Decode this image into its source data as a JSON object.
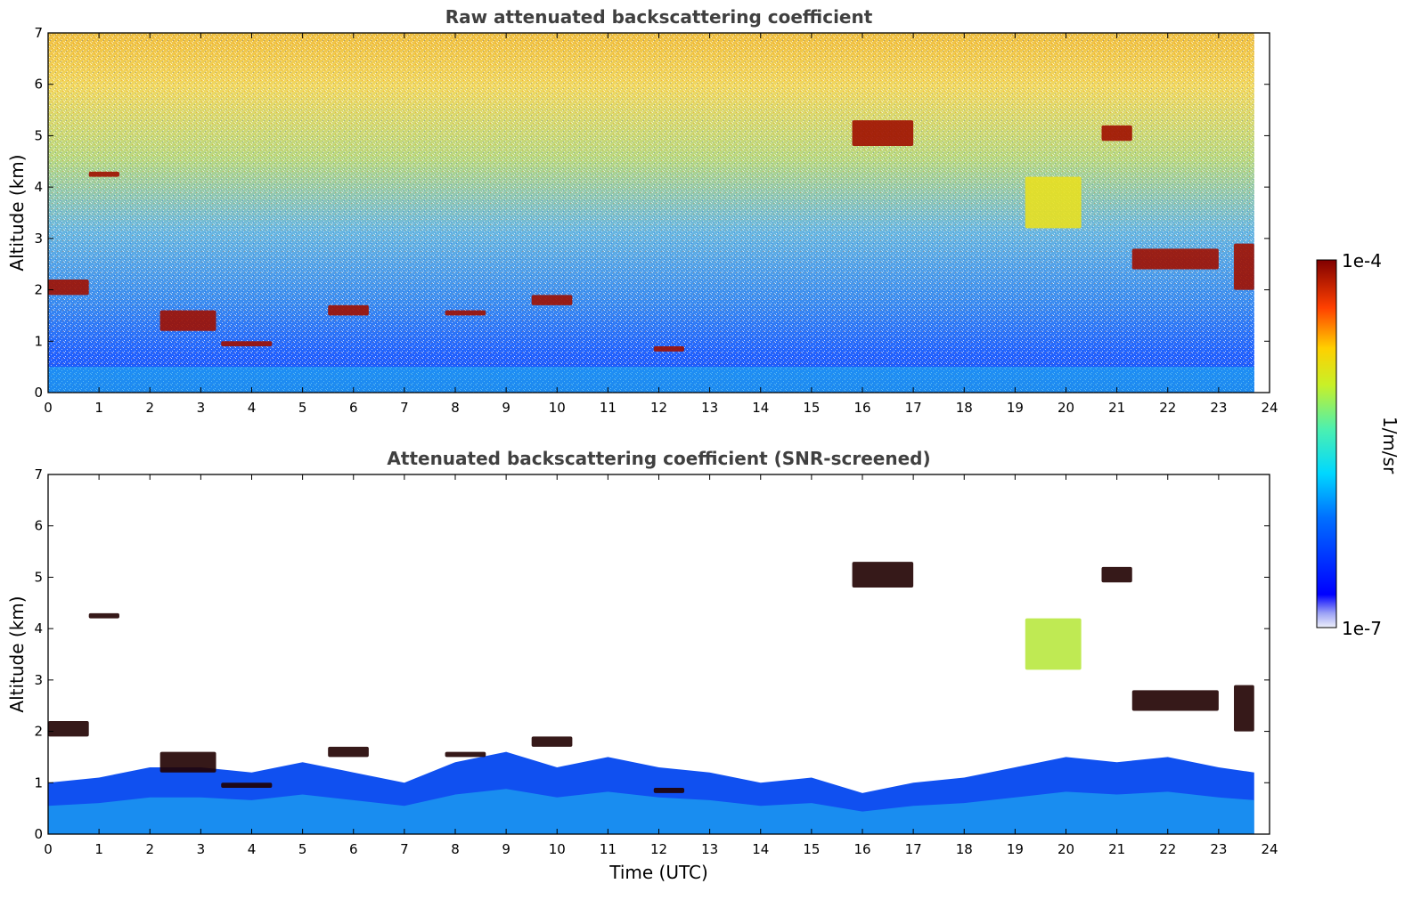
{
  "chart_data": [
    {
      "type": "heatmap",
      "title": "Raw attenuated backscattering coefficient",
      "xlabel": "",
      "ylabel": "Altitude (km)",
      "xlim": [
        0,
        24
      ],
      "ylim": [
        0,
        7
      ],
      "x_ticks": [
        "0",
        "1",
        "2",
        "3",
        "4",
        "5",
        "6",
        "7",
        "8",
        "9",
        "10",
        "11",
        "12",
        "13",
        "14",
        "15",
        "16",
        "17",
        "18",
        "19",
        "20",
        "21",
        "22",
        "23",
        "24"
      ],
      "y_ticks": [
        "0",
        "1",
        "2",
        "3",
        "4",
        "5",
        "6",
        "7"
      ],
      "data_end_time": 23.7,
      "layers": [
        {
          "time": [
            0.0,
            0.8
          ],
          "altitude": [
            1.9,
            2.2
          ],
          "intensity": "high"
        },
        {
          "time": [
            0.8,
            1.4
          ],
          "altitude": [
            4.2,
            4.3
          ],
          "intensity": "high"
        },
        {
          "time": [
            2.2,
            3.3
          ],
          "altitude": [
            1.2,
            1.6
          ],
          "intensity": "high"
        },
        {
          "time": [
            3.4,
            4.4
          ],
          "altitude": [
            0.9,
            1.0
          ],
          "intensity": "high"
        },
        {
          "time": [
            5.5,
            6.3
          ],
          "altitude": [
            1.5,
            1.7
          ],
          "intensity": "high"
        },
        {
          "time": [
            7.8,
            8.6
          ],
          "altitude": [
            1.5,
            1.6
          ],
          "intensity": "high"
        },
        {
          "time": [
            9.5,
            10.3
          ],
          "altitude": [
            1.7,
            1.9
          ],
          "intensity": "high"
        },
        {
          "time": [
            11.9,
            12.5
          ],
          "altitude": [
            0.8,
            0.9
          ],
          "intensity": "high"
        },
        {
          "time": [
            15.8,
            17.0
          ],
          "altitude": [
            4.8,
            5.3
          ],
          "intensity": "high"
        },
        {
          "time": [
            19.2,
            20.3
          ],
          "altitude": [
            3.2,
            4.2
          ],
          "intensity": "medium"
        },
        {
          "time": [
            20.7,
            21.3
          ],
          "altitude": [
            4.9,
            5.2
          ],
          "intensity": "high"
        },
        {
          "time": [
            21.3,
            23.0
          ],
          "altitude": [
            2.4,
            2.8
          ],
          "intensity": "high"
        },
        {
          "time": [
            23.3,
            23.7
          ],
          "altitude": [
            2.0,
            2.9
          ],
          "intensity": "high"
        }
      ]
    },
    {
      "type": "heatmap",
      "title": "Attenuated backscattering coefficient (SNR-screened)",
      "xlabel": "Time (UTC)",
      "ylabel": "Altitude (km)",
      "xlim": [
        0,
        24
      ],
      "ylim": [
        0,
        7
      ],
      "x_ticks": [
        "0",
        "1",
        "2",
        "3",
        "4",
        "5",
        "6",
        "7",
        "8",
        "9",
        "10",
        "11",
        "12",
        "13",
        "14",
        "15",
        "16",
        "17",
        "18",
        "19",
        "20",
        "21",
        "22",
        "23",
        "24"
      ],
      "y_ticks": [
        "0",
        "1",
        "2",
        "3",
        "4",
        "5",
        "6",
        "7"
      ],
      "data_end_time": 23.7,
      "boundary_layer_top": [
        [
          0,
          1.0
        ],
        [
          1,
          1.1
        ],
        [
          2,
          1.3
        ],
        [
          3,
          1.3
        ],
        [
          4,
          1.2
        ],
        [
          5,
          1.4
        ],
        [
          6,
          1.2
        ],
        [
          7,
          1.0
        ],
        [
          8,
          1.4
        ],
        [
          9,
          1.6
        ],
        [
          10,
          1.3
        ],
        [
          11,
          1.5
        ],
        [
          12,
          1.3
        ],
        [
          13,
          1.2
        ],
        [
          14,
          1.0
        ],
        [
          15,
          1.1
        ],
        [
          16,
          0.8
        ],
        [
          17,
          1.0
        ],
        [
          18,
          1.1
        ],
        [
          19,
          1.3
        ],
        [
          20,
          1.5
        ],
        [
          21,
          1.4
        ],
        [
          22,
          1.5
        ],
        [
          23,
          1.3
        ],
        [
          23.7,
          1.2
        ]
      ]
    }
  ],
  "colorbar": {
    "label": "1/m/sr",
    "max_label": "1e-4",
    "min_label": "1e-7",
    "scale": "log",
    "colormap": "jet"
  }
}
